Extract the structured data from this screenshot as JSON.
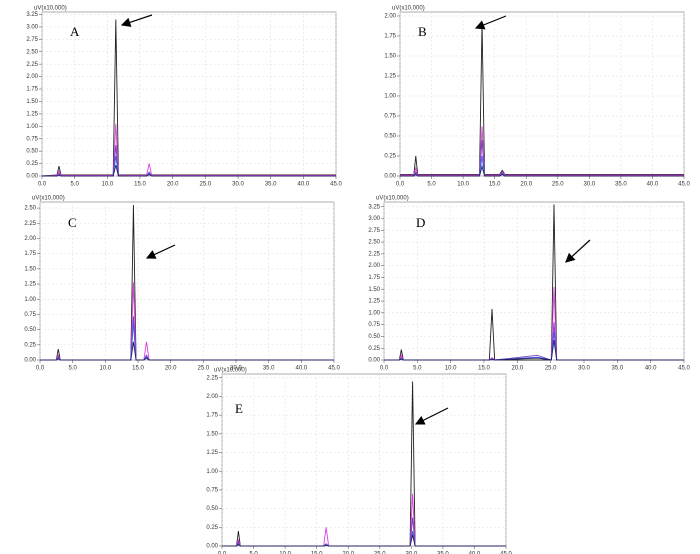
{
  "chart_data": [
    {
      "type": "line",
      "label": "A",
      "y_label": "uV(x10,000)",
      "grid": true,
      "x": [
        0,
        2.3,
        2.6,
        2.9,
        10.9,
        11.3,
        11.7,
        16.0,
        16.4,
        16.8,
        45
      ],
      "series": [
        {
          "color": "#222222",
          "values": [
            0,
            0.02,
            0.2,
            0.02,
            0.02,
            3.15,
            0.02,
            0.02,
            0.05,
            0.02,
            0.02
          ]
        },
        {
          "color": "#e040e0",
          "values": [
            0,
            0.01,
            0.1,
            0.01,
            0.01,
            1.05,
            0.01,
            0.01,
            0.25,
            0.01,
            0.01
          ]
        },
        {
          "color": "#7040c0",
          "values": [
            0,
            0,
            0.05,
            0,
            0,
            0.62,
            0,
            0,
            0.08,
            0,
            0
          ]
        },
        {
          "color": "#4060e0",
          "values": [
            0,
            0,
            0.03,
            0,
            0,
            0.4,
            0,
            0,
            0.05,
            0,
            0
          ]
        },
        {
          "color": "#202060",
          "values": [
            0,
            0,
            0.02,
            0,
            0,
            0.22,
            0,
            0,
            0.03,
            0,
            0
          ]
        }
      ],
      "xlim": [
        0,
        45
      ],
      "xticks": [
        {
          "value": 0,
          "label": "0.0"
        },
        {
          "value": 5,
          "label": "5.0"
        },
        {
          "value": 10,
          "label": "10.0"
        },
        {
          "value": 15,
          "label": "15.0"
        },
        {
          "value": 20,
          "label": "20.0"
        },
        {
          "value": 25,
          "label": "25.0"
        },
        {
          "value": 30,
          "label": "30.0"
        },
        {
          "value": 35,
          "label": "35.0"
        },
        {
          "value": 40,
          "label": "40.0"
        },
        {
          "value": 45,
          "label": "45.0"
        }
      ],
      "ylim": [
        0,
        3.3
      ],
      "yticks": [
        {
          "value": 0,
          "label": "0.00"
        },
        {
          "value": 0.25,
          "label": "0.25"
        },
        {
          "value": 0.5,
          "label": "0.50"
        },
        {
          "value": 0.75,
          "label": "0.75"
        },
        {
          "value": 1,
          "label": "1.00"
        },
        {
          "value": 1.25,
          "label": "1.25"
        },
        {
          "value": 1.5,
          "label": "1.50"
        },
        {
          "value": 1.75,
          "label": "1.75"
        },
        {
          "value": 2,
          "label": "2.00"
        },
        {
          "value": 2.25,
          "label": "2.25"
        },
        {
          "value": 2.5,
          "label": "2.50"
        },
        {
          "value": 2.75,
          "label": "2.75"
        },
        {
          "value": 3,
          "label": "3.00"
        },
        {
          "value": 3.25,
          "label": "3.25"
        }
      ]
    },
    {
      "type": "line",
      "label": "B",
      "y_label": "uV(x10,000)",
      "grid": true,
      "x": [
        0,
        2.2,
        2.5,
        2.8,
        12.6,
        13.0,
        13.4,
        15.8,
        16.2,
        16.6,
        45
      ],
      "series": [
        {
          "color": "#222222",
          "values": [
            0.02,
            0.02,
            0.25,
            0.02,
            0.02,
            1.92,
            0.02,
            0.02,
            0.07,
            0.02,
            0.02
          ]
        },
        {
          "color": "#e040e0",
          "values": [
            0.01,
            0.01,
            0.1,
            0.01,
            0.01,
            0.62,
            0.01,
            0.01,
            0.05,
            0.01,
            0.01
          ]
        },
        {
          "color": "#7040c0",
          "values": [
            0,
            0,
            0.05,
            0,
            0,
            0.45,
            0,
            0,
            0.04,
            0,
            0
          ]
        },
        {
          "color": "#4060e0",
          "values": [
            0,
            0,
            0.03,
            0,
            0,
            0.25,
            0,
            0,
            0.03,
            0,
            0
          ]
        },
        {
          "color": "#202060",
          "values": [
            0,
            0,
            0.02,
            0,
            0,
            0.12,
            0,
            0,
            0.02,
            0,
            0
          ]
        }
      ],
      "xlim": [
        0,
        45
      ],
      "xticks": [
        {
          "value": 0,
          "label": "0.0"
        },
        {
          "value": 5,
          "label": "5.0"
        },
        {
          "value": 10,
          "label": "10.0"
        },
        {
          "value": 15,
          "label": "15.0"
        },
        {
          "value": 20,
          "label": "20.0"
        },
        {
          "value": 25,
          "label": "25.0"
        },
        {
          "value": 30,
          "label": "30.0"
        },
        {
          "value": 35,
          "label": "35.0"
        },
        {
          "value": 40,
          "label": "40.0"
        },
        {
          "value": 45,
          "label": "45.0"
        }
      ],
      "ylim": [
        0,
        2.05
      ],
      "yticks": [
        {
          "value": 0,
          "label": "0.00"
        },
        {
          "value": 0.25,
          "label": "0.25"
        },
        {
          "value": 0.5,
          "label": "0.50"
        },
        {
          "value": 0.75,
          "label": "0.75"
        },
        {
          "value": 1,
          "label": "1.00"
        },
        {
          "value": 1.25,
          "label": "1.25"
        },
        {
          "value": 1.5,
          "label": "1.50"
        },
        {
          "value": 1.75,
          "label": "1.75"
        },
        {
          "value": 2,
          "label": "2.00"
        }
      ]
    },
    {
      "type": "line",
      "label": "C",
      "y_label": "uV(x10,000)",
      "grid": true,
      "x": [
        0,
        2.5,
        2.8,
        3.1,
        13.9,
        14.3,
        14.7,
        15.9,
        16.3,
        16.7,
        45
      ],
      "series": [
        {
          "color": "#222222",
          "values": [
            0,
            0,
            0.18,
            0,
            0,
            2.55,
            0,
            0,
            0.05,
            0,
            0
          ]
        },
        {
          "color": "#e040e0",
          "values": [
            0,
            0,
            0.08,
            0,
            0,
            1.28,
            0,
            0,
            0.3,
            0,
            0
          ]
        },
        {
          "color": "#7040c0",
          "values": [
            0,
            0,
            0.05,
            0,
            0,
            0.72,
            0,
            0,
            0.08,
            0,
            0
          ]
        },
        {
          "color": "#4060e0",
          "values": [
            0,
            0,
            0.03,
            0,
            0,
            0.62,
            0,
            0,
            0.05,
            0,
            0
          ]
        },
        {
          "color": "#202060",
          "values": [
            0,
            0,
            0.02,
            0,
            0,
            0.3,
            0,
            0,
            0.03,
            0,
            0
          ]
        }
      ],
      "xlim": [
        0,
        45
      ],
      "xticks": [
        {
          "value": 0,
          "label": "0.0"
        },
        {
          "value": 5,
          "label": "5.0"
        },
        {
          "value": 10,
          "label": "10.0"
        },
        {
          "value": 15,
          "label": "15.0"
        },
        {
          "value": 20,
          "label": "20.0"
        },
        {
          "value": 25,
          "label": "25.0"
        },
        {
          "value": 30,
          "label": "30.0"
        },
        {
          "value": 35,
          "label": "35.0"
        },
        {
          "value": 40,
          "label": "40.0"
        },
        {
          "value": 45,
          "label": "45.0"
        }
      ],
      "ylim": [
        0,
        2.6
      ],
      "yticks": [
        {
          "value": 0,
          "label": "0.00"
        },
        {
          "value": 0.25,
          "label": "0.25"
        },
        {
          "value": 0.5,
          "label": "0.50"
        },
        {
          "value": 0.75,
          "label": "0.75"
        },
        {
          "value": 1,
          "label": "1.00"
        },
        {
          "value": 1.25,
          "label": "1.25"
        },
        {
          "value": 1.5,
          "label": "1.50"
        },
        {
          "value": 1.75,
          "label": "1.75"
        },
        {
          "value": 2,
          "label": "2.00"
        },
        {
          "value": 2.25,
          "label": "2.25"
        },
        {
          "value": 2.5,
          "label": "2.50"
        }
      ]
    },
    {
      "type": "line",
      "label": "D",
      "y_label": "uV(x10,000)",
      "grid": true,
      "x": [
        0,
        2.3,
        2.6,
        2.9,
        15.8,
        16.2,
        16.6,
        23.0,
        25.1,
        25.5,
        25.9,
        45
      ],
      "series": [
        {
          "color": "#222222",
          "values": [
            0,
            0,
            0.22,
            0,
            0,
            1.08,
            0,
            0,
            0,
            3.3,
            0,
            0
          ]
        },
        {
          "color": "#e040e0",
          "values": [
            0,
            0,
            0.1,
            0,
            0,
            0.05,
            0,
            0.05,
            0,
            1.55,
            0,
            0
          ]
        },
        {
          "color": "#7040c0",
          "values": [
            0,
            0,
            0.05,
            0,
            0,
            0.03,
            0,
            0.1,
            0,
            0.8,
            0,
            0
          ]
        },
        {
          "color": "#4060e0",
          "values": [
            0,
            0,
            0.03,
            0,
            0,
            0.02,
            0,
            0.06,
            0,
            0.6,
            0,
            0
          ]
        },
        {
          "color": "#202060",
          "values": [
            0,
            0,
            0.02,
            0,
            0,
            0.01,
            0,
            0.04,
            0,
            0.42,
            0,
            0
          ]
        }
      ],
      "xlim": [
        0,
        45
      ],
      "xticks": [
        {
          "value": 0,
          "label": "0.0"
        },
        {
          "value": 5,
          "label": "5.0"
        },
        {
          "value": 10,
          "label": "10.0"
        },
        {
          "value": 15,
          "label": "15.0"
        },
        {
          "value": 20,
          "label": "20.0"
        },
        {
          "value": 25,
          "label": "25.0"
        },
        {
          "value": 30,
          "label": "30.0"
        },
        {
          "value": 35,
          "label": "35.0"
        },
        {
          "value": 40,
          "label": "40.0"
        },
        {
          "value": 45,
          "label": "45.0"
        }
      ],
      "ylim": [
        0,
        3.35
      ],
      "yticks": [
        {
          "value": 0,
          "label": "0.00"
        },
        {
          "value": 0.25,
          "label": "0.25"
        },
        {
          "value": 0.5,
          "label": "0.50"
        },
        {
          "value": 0.75,
          "label": "0.75"
        },
        {
          "value": 1,
          "label": "1.00"
        },
        {
          "value": 1.25,
          "label": "1.25"
        },
        {
          "value": 1.5,
          "label": "1.50"
        },
        {
          "value": 1.75,
          "label": "1.75"
        },
        {
          "value": 2,
          "label": "2.00"
        },
        {
          "value": 2.25,
          "label": "2.25"
        },
        {
          "value": 2.5,
          "label": "2.50"
        },
        {
          "value": 2.75,
          "label": "2.75"
        },
        {
          "value": 3,
          "label": "3.00"
        },
        {
          "value": 3.25,
          "label": "3.25"
        }
      ]
    },
    {
      "type": "line",
      "label": "E",
      "y_label": "uV(x10,000)",
      "grid": true,
      "x": [
        0,
        2.3,
        2.6,
        2.9,
        16.1,
        16.5,
        16.9,
        29.8,
        30.2,
        30.6,
        45
      ],
      "series": [
        {
          "color": "#222222",
          "values": [
            0,
            0,
            0.2,
            0,
            0,
            0.02,
            0,
            0,
            2.2,
            0,
            0
          ]
        },
        {
          "color": "#e040e0",
          "values": [
            0,
            0,
            0.08,
            0,
            0,
            0.25,
            0,
            0,
            0.7,
            0,
            0
          ]
        },
        {
          "color": "#7040c0",
          "values": [
            0,
            0,
            0.05,
            0,
            0,
            0.03,
            0,
            0,
            0.38,
            0,
            0
          ]
        },
        {
          "color": "#4060e0",
          "values": [
            0,
            0,
            0.03,
            0,
            0,
            0.02,
            0,
            0,
            0.2,
            0,
            0
          ]
        },
        {
          "color": "#202060",
          "values": [
            0,
            0,
            0.02,
            0,
            0,
            0.01,
            0,
            0,
            0.15,
            0,
            0
          ]
        }
      ],
      "xlim": [
        0,
        45
      ],
      "xticks": [
        {
          "value": 0,
          "label": "0.0"
        },
        {
          "value": 5,
          "label": "5.0"
        },
        {
          "value": 10,
          "label": "10.0"
        },
        {
          "value": 15,
          "label": "15.0"
        },
        {
          "value": 20,
          "label": "20.0"
        },
        {
          "value": 25,
          "label": "25.0"
        },
        {
          "value": 30,
          "label": "30.0"
        },
        {
          "value": 35,
          "label": "35.0"
        },
        {
          "value": 40,
          "label": "40.0"
        },
        {
          "value": 45,
          "label": "45.0"
        }
      ],
      "ylim": [
        0,
        2.3
      ],
      "yticks": [
        {
          "value": 0,
          "label": "0.00"
        },
        {
          "value": 0.25,
          "label": "0.25"
        },
        {
          "value": 0.5,
          "label": "0.50"
        },
        {
          "value": 0.75,
          "label": "0.75"
        },
        {
          "value": 1,
          "label": "1.00"
        },
        {
          "value": 1.25,
          "label": "1.25"
        },
        {
          "value": 1.5,
          "label": "1.50"
        },
        {
          "value": 1.75,
          "label": "1.75"
        },
        {
          "value": 2,
          "label": "2.00"
        },
        {
          "value": 2.25,
          "label": "2.25"
        }
      ]
    }
  ]
}
